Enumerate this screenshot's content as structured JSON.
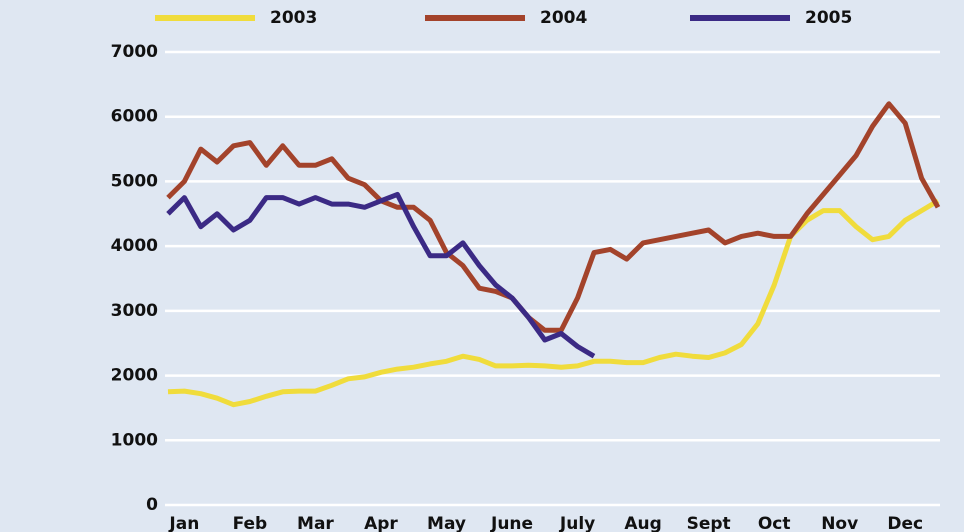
{
  "chart_data": {
    "type": "line",
    "categories": [
      null,
      "Jan",
      null,
      null,
      null,
      "Feb",
      null,
      null,
      null,
      "Mar",
      null,
      null,
      null,
      "Apr",
      null,
      null,
      null,
      "May",
      null,
      null,
      null,
      "June",
      null,
      null,
      null,
      "July",
      null,
      null,
      null,
      "Aug",
      null,
      null,
      null,
      "Sept",
      null,
      null,
      null,
      "Oct",
      null,
      null,
      null,
      "Nov",
      null,
      null,
      null,
      "Dec",
      null,
      null
    ],
    "series": [
      {
        "name": "2003",
        "color": "#f0dc3c",
        "values": [
          1750,
          1760,
          1720,
          1650,
          1550,
          1600,
          1680,
          1750,
          1760,
          1760,
          1850,
          1950,
          1980,
          2050,
          2100,
          2130,
          2180,
          2220,
          2300,
          2250,
          2150,
          2150,
          2160,
          2150,
          2130,
          2150,
          2220,
          2220,
          2200,
          2200,
          2280,
          2330,
          2300,
          2280,
          2350,
          2480,
          2800,
          3400,
          4150,
          4400,
          4550,
          4550,
          4300,
          4100,
          4150,
          4400,
          4550,
          4700
        ]
      },
      {
        "name": "2004",
        "color": "#a3432b",
        "values": [
          4750,
          5000,
          5500,
          5300,
          5550,
          5600,
          5250,
          5550,
          5250,
          5250,
          5350,
          5050,
          4950,
          4700,
          4600,
          4600,
          4400,
          3900,
          3700,
          3350,
          3300,
          3200,
          2900,
          2700,
          2700,
          3200,
          3900,
          3950,
          3800,
          4050,
          4100,
          4150,
          4200,
          4250,
          4050,
          4150,
          4200,
          4150,
          4150,
          4500,
          4800,
          5100,
          5400,
          5850,
          6200,
          5900,
          5050,
          4600
        ]
      },
      {
        "name": "2005",
        "color": "#3b2a85",
        "values": [
          4500,
          4750,
          4300,
          4500,
          4250,
          4400,
          4750,
          4750,
          4650,
          4750,
          4650,
          4650,
          4600,
          4700,
          4800,
          4300,
          3850,
          3850,
          4050,
          3700,
          3400,
          3200,
          2900,
          2550,
          2650,
          2450,
          2300,
          null,
          null,
          null,
          null,
          null,
          null,
          null,
          null,
          null,
          null,
          null,
          null,
          null,
          null,
          null,
          null,
          null,
          null,
          null,
          null,
          null
        ]
      }
    ],
    "ylim": [
      0,
      7000
    ],
    "yticks": [
      0,
      1000,
      2000,
      3000,
      4000,
      5000,
      6000,
      7000
    ],
    "grid": true
  }
}
